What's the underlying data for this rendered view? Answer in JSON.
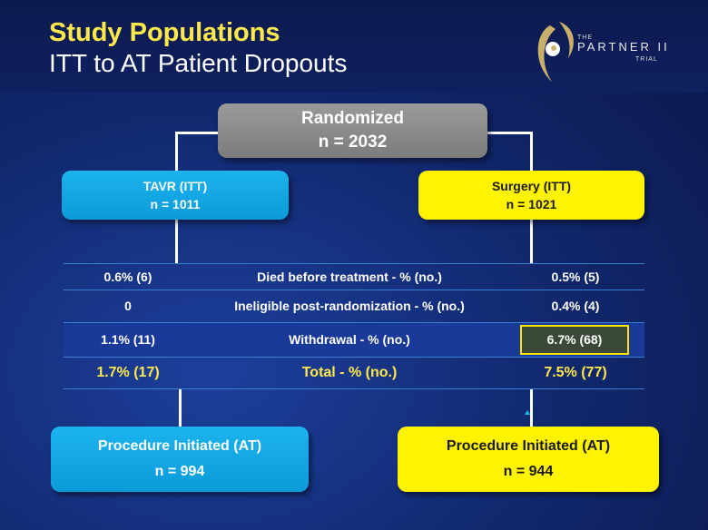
{
  "header": {
    "title": "Study Populations",
    "subtitle": "ITT to AT Patient Dropouts"
  },
  "logo": {
    "small_top": "THE",
    "main": "PARTNER II",
    "small_bottom": "TRIAL"
  },
  "randomized": {
    "label": "Randomized",
    "n": "n = 2032"
  },
  "tavr": {
    "label": "TAVR (ITT)",
    "n": "n = 1011"
  },
  "surgery": {
    "label": "Surgery (ITT)",
    "n": "n = 1021"
  },
  "table": {
    "rows": [
      {
        "left": "0.6% (6)",
        "label": "Died before treatment -  % (no.)",
        "right": "0.5% (5)"
      },
      {
        "left": "0",
        "label": "Ineligible post-randomization - % (no.)",
        "right": "0.4%  (4)"
      },
      {
        "left": "1.1% (11)",
        "label": "Withdrawal - % (no.)",
        "right": "6.7% (68)"
      },
      {
        "left": "1.7% (17)",
        "label": "Total - % (no.)",
        "right": "7.5% (77)"
      }
    ]
  },
  "procedure_tavr": {
    "label": "Procedure Initiated (AT)",
    "n": "n = 994"
  },
  "procedure_surgery": {
    "label": "Procedure Initiated (AT)",
    "n": "n = 944"
  },
  "colors": {
    "tavr": "#0b9bd8",
    "surgery": "#fff300",
    "title": "#ffe94a",
    "randomized": "#8a8a8a"
  }
}
